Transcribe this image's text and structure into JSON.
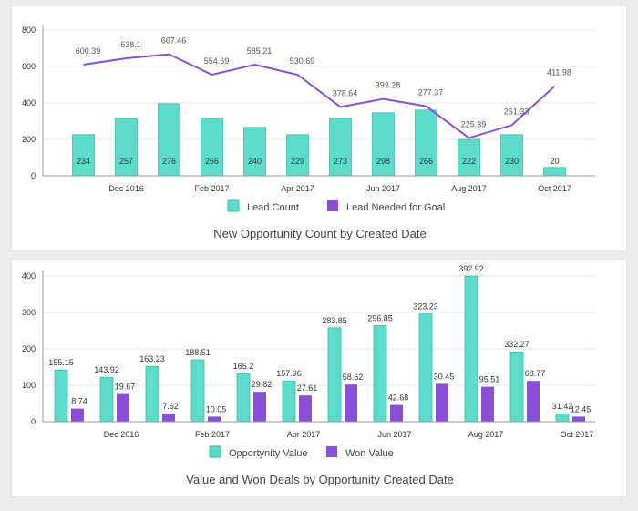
{
  "colors": {
    "teal": "#5ddbcb",
    "teal_stroke": "#3bbfad",
    "purple": "#8a4fd6",
    "purple_bar": "#8a4fd6",
    "grid": "#e6e6e6",
    "axis": "#999999"
  },
  "chart_data": [
    {
      "type": "bar+line",
      "title": "New Opportunity Count by Created Date",
      "ylim": [
        0,
        800
      ],
      "yticks": [
        "0",
        "200",
        "400",
        "600",
        "800"
      ],
      "xtick_labels": [
        "Dec 2016",
        "Feb 2017",
        "Apr 2017",
        "Jun 2017",
        "Aug 2017",
        "Oct 2017"
      ],
      "categories": [
        "Nov 2016",
        "Dec 2016",
        "Jan 2017",
        "Feb 2017",
        "Mar 2017",
        "Apr 2017",
        "May 2017",
        "Jun 2017",
        "Jul 2017",
        "Aug 2017",
        "Sep 2017",
        "Oct 2017"
      ],
      "series": [
        {
          "name": "Lead Count",
          "kind": "bar",
          "values": [
            234,
            257,
            276,
            266,
            240,
            229,
            273,
            298,
            266,
            222,
            230,
            20
          ],
          "bar_heights": [
            226,
            316,
            396,
            316,
            266,
            226,
            316,
            346,
            361,
            200,
            226,
            46
          ],
          "labels": [
            "234",
            "257",
            "276",
            "266",
            "240",
            "229",
            "273",
            "298",
            "266",
            "222",
            "230",
            "20"
          ]
        },
        {
          "name": "Lead Needed for Goal",
          "kind": "line",
          "values": [
            600.39,
            638.1,
            667.46,
            554.69,
            585.21,
            530.69,
            378.64,
            393.28,
            277.37,
            225.39,
            261.33,
            411.98
          ],
          "plot_values": [
            610,
            645,
            667,
            555,
            610,
            555,
            378,
            422,
            382,
            208,
            278,
            492
          ],
          "labels": [
            "600.39",
            "638.1",
            "667.46",
            "554.69",
            "585.21",
            "530.69",
            "378.64",
            "393.28",
            "277.37",
            "225.39",
            "261.33",
            "411.98"
          ]
        }
      ],
      "legend": [
        "Lead Count",
        "Lead Needed for Goal"
      ]
    },
    {
      "type": "bar",
      "title": "Value and Won Deals by Opportunity Created Date",
      "ylim": [
        0,
        400
      ],
      "yticks": [
        "0",
        "100",
        "200",
        "300",
        "400"
      ],
      "xtick_labels": [
        "Dec 2016",
        "Feb 2017",
        "Apr 2017",
        "Jun 2017",
        "Aug 2017",
        "Oct 2017"
      ],
      "categories": [
        "Nov 2016",
        "Dec 2016",
        "Jan 2017",
        "Feb 2017",
        "Mar 2017",
        "Apr 2017",
        "May 2017",
        "Jun 2017",
        "Jul 2017",
        "Aug 2017",
        "Sep 2017",
        "Oct 2017"
      ],
      "series": [
        {
          "name": "Opportynity Value",
          "values": [
            155.15,
            143.92,
            163.23,
            188.51,
            165.2,
            157.96,
            283.85,
            296.85,
            323.23,
            392.92,
            332.27,
            31.42
          ],
          "bar_heights": [
            142,
            122,
            152,
            170,
            132,
            112,
            258,
            264,
            296,
            400,
            192,
            22
          ],
          "labels": [
            "155.15",
            "143.92",
            "163.23",
            "188.51",
            "165.2",
            "157.96",
            "283.85",
            "296.85",
            "323.23",
            "392.92",
            "332.27",
            "31.42"
          ]
        },
        {
          "name": "Won Value",
          "values": [
            8.74,
            19.67,
            7.62,
            10.05,
            29.82,
            27.61,
            58.62,
            42.68,
            30.45,
            95.51,
            68.77,
            12.45
          ],
          "bar_heights": [
            36,
            76,
            22,
            14,
            82,
            72,
            102,
            46,
            104,
            96,
            112,
            14
          ],
          "labels": [
            "8.74",
            "19.67",
            "7.62",
            "10.05",
            "29.82",
            "27.61",
            "58.62",
            "42.68",
            "30.45",
            "95.51",
            "68.77",
            "12.45"
          ]
        }
      ],
      "legend": [
        "Opportynity Value",
        "Won Value"
      ]
    }
  ]
}
